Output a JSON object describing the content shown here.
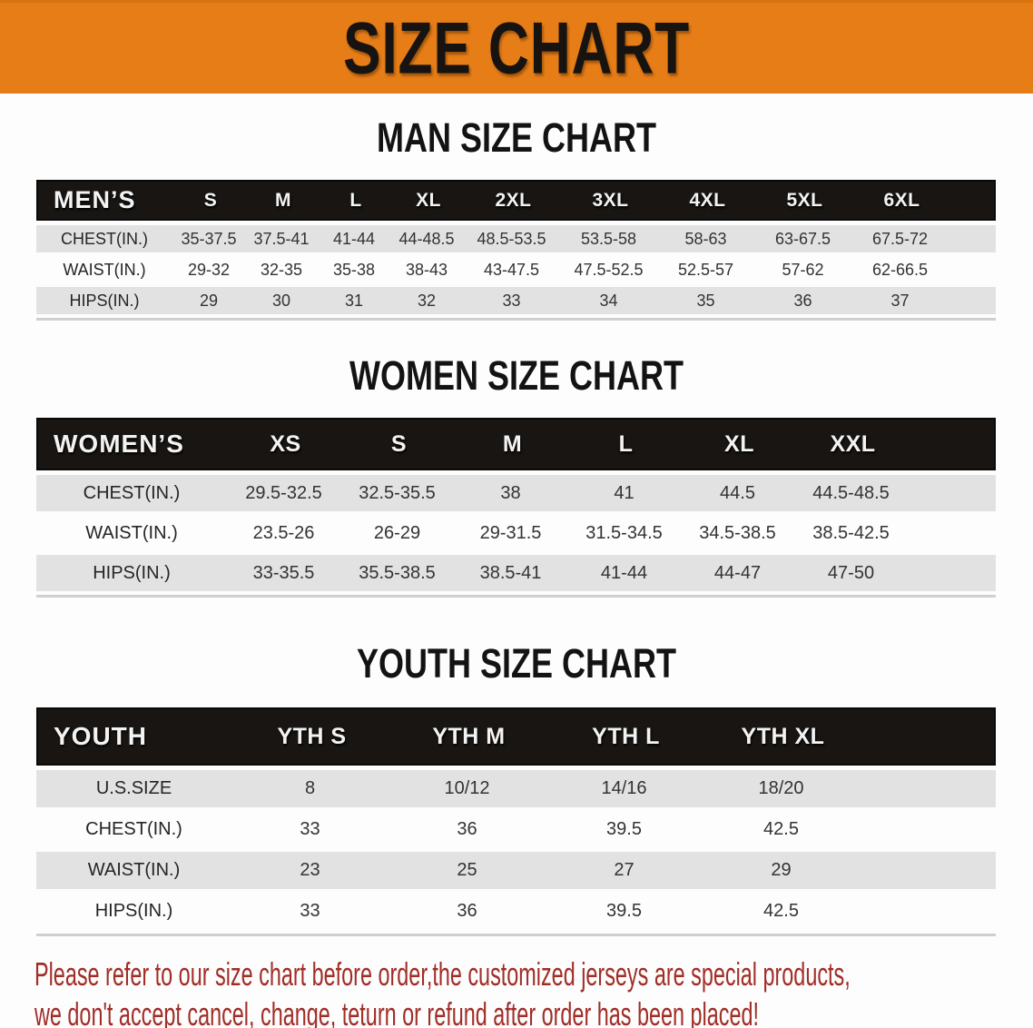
{
  "banner": {
    "title": "SIZE CHART",
    "bg_color": "#e67d17",
    "text_color": "#161310"
  },
  "chart_data": [
    {
      "type": "table",
      "title": "MAN SIZE CHART",
      "header_label": "MEN’S",
      "columns": [
        "S",
        "M",
        "L",
        "XL",
        "2XL",
        "3XL",
        "4XL",
        "5XL",
        "6XL"
      ],
      "rows": [
        {
          "label": "CHEST(IN.)",
          "values": [
            "35-37.5",
            "37.5-41",
            "41-44",
            "44-48.5",
            "48.5-53.5",
            "53.5-58",
            "58-63",
            "63-67.5",
            "67.5-72"
          ]
        },
        {
          "label": "WAIST(IN.)",
          "values": [
            "29-32",
            "32-35",
            "35-38",
            "38-43",
            "43-47.5",
            "47.5-52.5",
            "52.5-57",
            "57-62",
            "62-66.5"
          ]
        },
        {
          "label": "HIPS(IN.)",
          "values": [
            "29",
            "30",
            "31",
            "32",
            "33",
            "34",
            "35",
            "36",
            "37"
          ]
        }
      ],
      "layout_hints": {
        "header_bg": "#181512",
        "stripe_bg": "#e2e2e2",
        "unit": "inches"
      }
    },
    {
      "type": "table",
      "title": "WOMEN SIZE CHART",
      "header_label": "WOMEN’S",
      "columns": [
        "XS",
        "S",
        "M",
        "L",
        "XL",
        "XXL"
      ],
      "rows": [
        {
          "label": "CHEST(IN.)",
          "values": [
            "29.5-32.5",
            "32.5-35.5",
            "38",
            "41",
            "44.5",
            "44.5-48.5"
          ]
        },
        {
          "label": "WAIST(IN.)",
          "values": [
            "23.5-26",
            "26-29",
            "29-31.5",
            "31.5-34.5",
            "34.5-38.5",
            "38.5-42.5"
          ]
        },
        {
          "label": "HIPS(IN.)",
          "values": [
            "33-35.5",
            "35.5-38.5",
            "38.5-41",
            "41-44",
            "44-47",
            "47-50"
          ]
        }
      ],
      "layout_hints": {
        "header_bg": "#181512",
        "stripe_bg": "#e2e2e2",
        "unit": "inches"
      }
    },
    {
      "type": "table",
      "title": "YOUTH SIZE CHART",
      "header_label": "YOUTH",
      "columns": [
        "YTH S",
        "YTH M",
        "YTH L",
        "YTH XL"
      ],
      "rows": [
        {
          "label": "U.S.SIZE",
          "values": [
            "8",
            "10/12",
            "14/16",
            "18/20"
          ]
        },
        {
          "label": "CHEST(IN.)",
          "values": [
            "33",
            "36",
            "39.5",
            "42.5"
          ]
        },
        {
          "label": "WAIST(IN.)",
          "values": [
            "23",
            "25",
            "27",
            "29"
          ]
        },
        {
          "label": "HIPS(IN.)",
          "values": [
            "33",
            "36",
            "39.5",
            "42.5"
          ]
        }
      ],
      "layout_hints": {
        "header_bg": "#181512",
        "stripe_bg": "#e2e2e2",
        "unit": "inches"
      }
    }
  ],
  "disclaimer": {
    "lines": [
      "Please refer to our size chart before order,the customized jerseys are special products,",
      "we don't accept cancel, change, teturn or refund after order has been placed!"
    ],
    "color": "#a12d27"
  }
}
